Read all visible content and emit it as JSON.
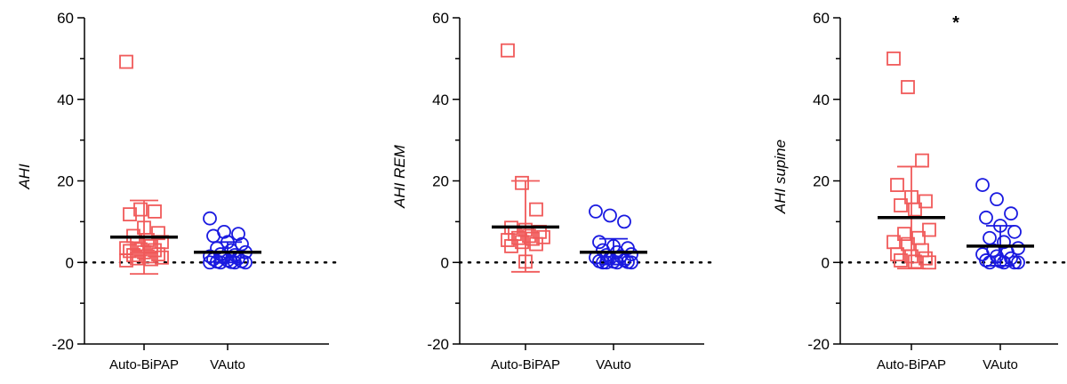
{
  "chart_data": [
    {
      "type": "scatter",
      "ylabel": "AHI",
      "ylim": [
        -20,
        60
      ],
      "yticks": [
        "60",
        "40",
        "20",
        "0",
        "-20"
      ],
      "categories": [
        "Auto-BiPAP",
        "VAuto"
      ],
      "annotation": "",
      "series": [
        {
          "name": "Auto-BiPAP",
          "color": "#f05a5a",
          "marker": "square",
          "mean": 6.2,
          "sd_low": -2.8,
          "sd_high": 15.2,
          "values": [
            49.2,
            13.0,
            12.5,
            11.8,
            8.5,
            7.2,
            6.5,
            5.5,
            5.0,
            4.5,
            4.0,
            3.5,
            3.2,
            3.0,
            2.8,
            2.5,
            2.0,
            1.8,
            1.5,
            1.2,
            1.0,
            0.8,
            0.5
          ]
        },
        {
          "name": "VAuto",
          "color": "#1a1ae0",
          "marker": "circle",
          "mean": 2.5,
          "sd_low": 0.0,
          "sd_high": 5.0,
          "values": [
            10.8,
            7.5,
            7.0,
            6.5,
            5.0,
            4.5,
            3.5,
            3.0,
            2.5,
            2.0,
            1.8,
            1.5,
            1.2,
            1.0,
            0.8,
            0.5,
            0.3,
            0.2,
            0.1,
            0.0,
            0.0,
            0.0,
            0.0
          ]
        }
      ]
    },
    {
      "type": "scatter",
      "ylabel": "AHI REM",
      "ylim": [
        -20,
        60
      ],
      "yticks": [
        "60",
        "40",
        "20",
        "0",
        "-20"
      ],
      "categories": [
        "Auto-BiPAP",
        "VAuto"
      ],
      "annotation": "",
      "series": [
        {
          "name": "Auto-BiPAP",
          "color": "#f05a5a",
          "marker": "square",
          "mean": 8.7,
          "sd_low": -2.3,
          "sd_high": 20.0,
          "values": [
            52.0,
            19.5,
            13.0,
            8.5,
            8.0,
            7.5,
            7.0,
            6.5,
            6.2,
            6.0,
            5.8,
            5.5,
            5.0,
            4.5,
            4.0,
            0.2
          ]
        },
        {
          "name": "VAuto",
          "color": "#1a1ae0",
          "marker": "circle",
          "mean": 2.5,
          "sd_low": -0.5,
          "sd_high": 5.8,
          "values": [
            12.5,
            11.5,
            10.0,
            5.0,
            4.0,
            3.5,
            3.0,
            2.5,
            2.0,
            1.8,
            1.5,
            1.2,
            1.0,
            0.5,
            0.3,
            0.2,
            0.1,
            0.0,
            0.0,
            0.0,
            0.0
          ]
        }
      ]
    },
    {
      "type": "scatter",
      "ylabel": "AHI supine",
      "ylim": [
        -20,
        60
      ],
      "yticks": [
        "60",
        "40",
        "20",
        "0",
        "-20"
      ],
      "categories": [
        "Auto-BiPAP",
        "VAuto"
      ],
      "annotation": "*",
      "series": [
        {
          "name": "Auto-BiPAP",
          "color": "#f05a5a",
          "marker": "square",
          "mean": 11.0,
          "sd_low": -1.5,
          "sd_high": 23.5,
          "values": [
            50.0,
            43.0,
            25.0,
            19.0,
            16.0,
            15.0,
            14.0,
            13.0,
            8.0,
            7.0,
            6.0,
            5.0,
            4.5,
            3.0,
            2.0,
            1.5,
            1.0,
            0.5,
            0.2,
            0.0
          ]
        },
        {
          "name": "VAuto",
          "color": "#1a1ae0",
          "marker": "circle",
          "mean": 4.0,
          "sd_low": -0.8,
          "sd_high": 9.0,
          "values": [
            19.0,
            15.5,
            12.0,
            11.0,
            9.0,
            7.5,
            6.0,
            5.0,
            3.5,
            3.0,
            2.5,
            2.0,
            1.5,
            1.0,
            0.5,
            0.3,
            0.0,
            0.0,
            0.0,
            0.0
          ]
        }
      ]
    }
  ]
}
